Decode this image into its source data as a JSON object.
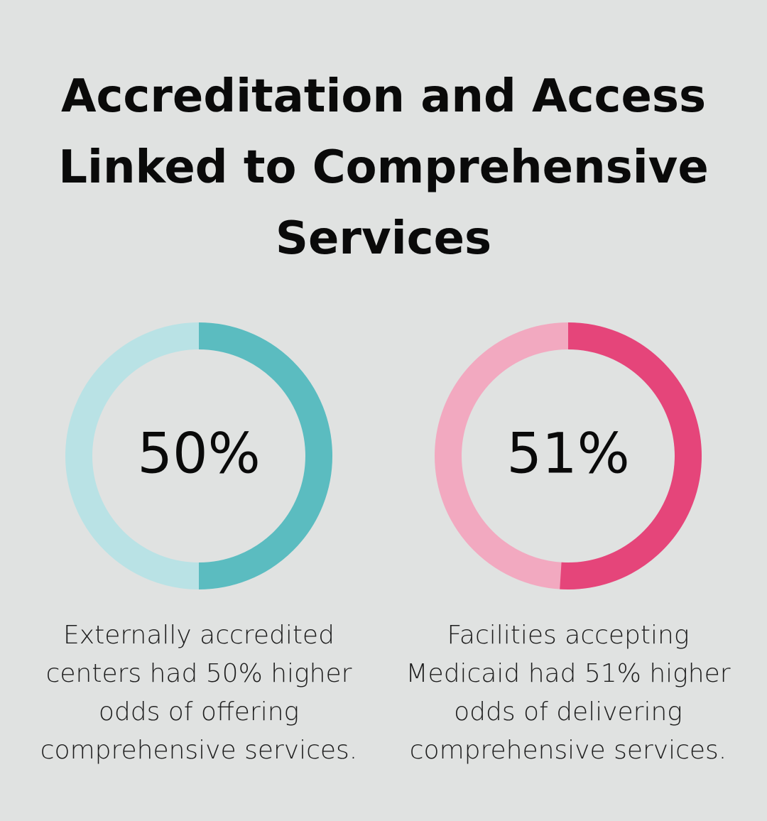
{
  "title": "Accreditation and Access Linked to Comprehensive Services",
  "chart_data": [
    {
      "type": "donut",
      "values": [
        50
      ],
      "value_labels": [
        "50%"
      ],
      "color": "#5bbcc0",
      "track_color": "#b9e2e5",
      "caption": "Externally accredited centers had 50% higher odds of offering comprehensive services."
    },
    {
      "type": "donut",
      "values": [
        51
      ],
      "value_labels": [
        "51%"
      ],
      "color": "#e5457a",
      "track_color": "#f2a9c0",
      "caption": "Facilities accepting Medicaid had 51% higher odds of delivering comprehensive services."
    }
  ]
}
